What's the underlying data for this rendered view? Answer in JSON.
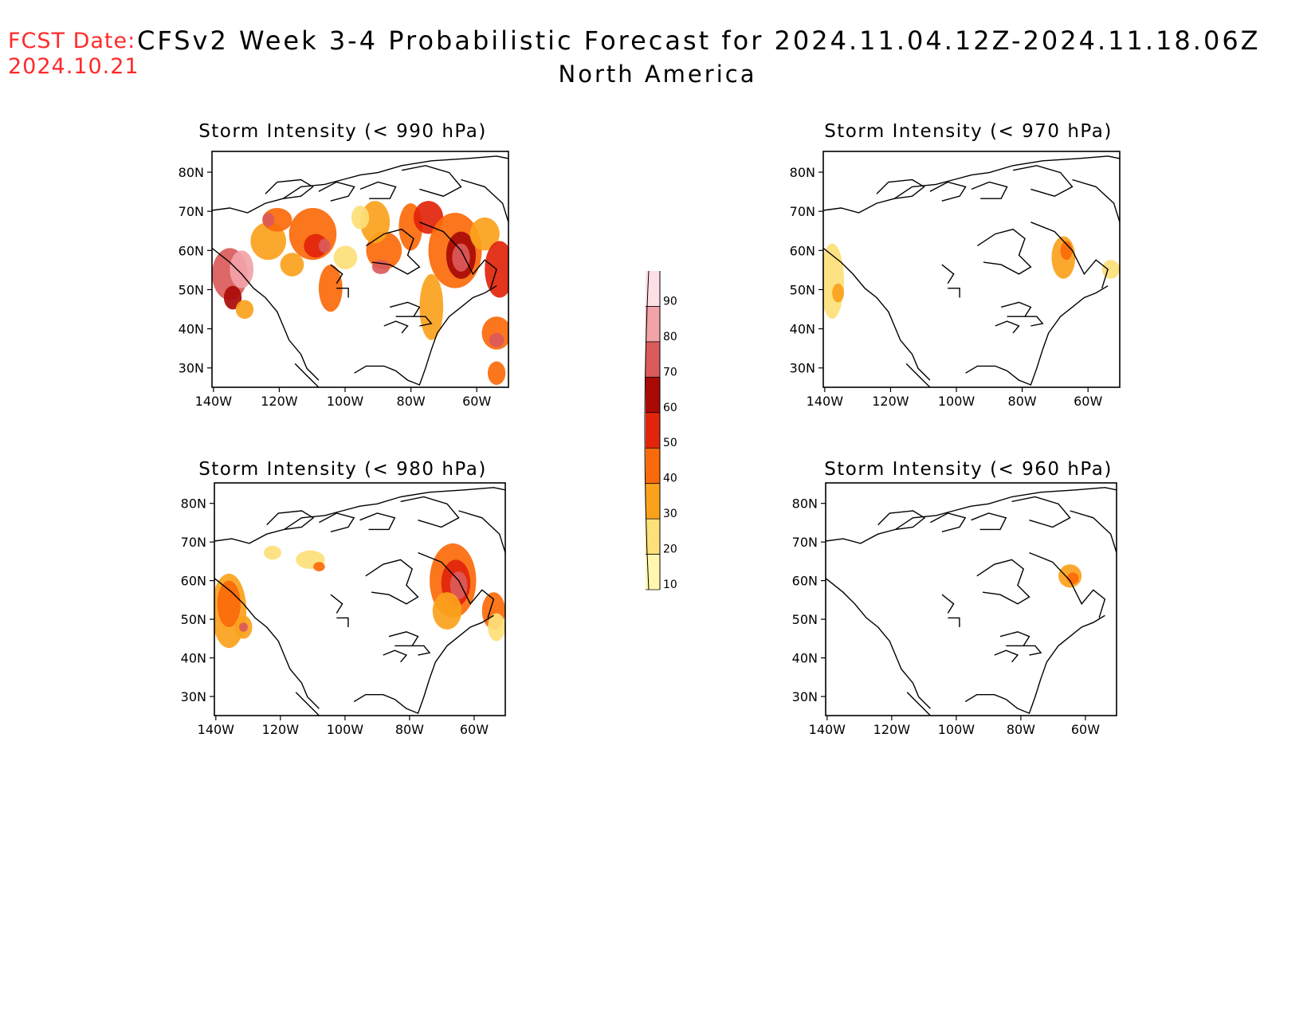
{
  "header": {
    "fcst_label": "FCST Date:",
    "fcst_date": "2024.10.21",
    "title": "CFSv2 Week 3-4 Probabilistic Forecast for 2024.11.04.12Z-2024.11.18.06Z",
    "subtitle": "North America"
  },
  "axes": {
    "lat_ticks": [
      "80N",
      "70N",
      "60N",
      "50N",
      "40N",
      "30N"
    ],
    "lon_ticks": [
      "140W",
      "120W",
      "100W",
      "80W",
      "60W"
    ]
  },
  "panels": [
    {
      "title": "Storm Intensity (< 990 hPa)"
    },
    {
      "title": "Storm Intensity (< 970 hPa)"
    },
    {
      "title": "Storm Intensity (< 980 hPa)"
    },
    {
      "title": "Storm Intensity (< 960 hPa)"
    }
  ],
  "colorbar": {
    "levels": [
      "10",
      "20",
      "30",
      "40",
      "50",
      "60",
      "70",
      "80",
      "90"
    ],
    "colors": [
      "#fff7b0",
      "#fde07a",
      "#fba21c",
      "#fb6a0a",
      "#e2240b",
      "#a90a06",
      "#db5a5a",
      "#f1a3a8",
      "#fde0e6"
    ]
  }
}
